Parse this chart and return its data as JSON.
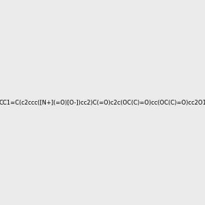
{
  "smiles": "CC1=C(c2ccc([N+](=O)[O-])cc2)C(=O)c2c(OC(C)=O)cc(OC(C)=O)cc2O1",
  "bg_color": "#ebebeb",
  "bond_color": "#000000",
  "oxygen_color": "#ff0000",
  "nitrogen_color": "#0000ff",
  "title": ""
}
